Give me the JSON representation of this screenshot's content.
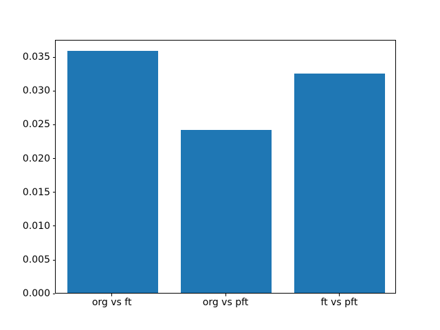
{
  "chart_data": {
    "type": "bar",
    "title": "",
    "xlabel": "",
    "ylabel": "",
    "categories": [
      "org vs ft",
      "org vs pft",
      "ft vs pft"
    ],
    "values": [
      0.0358,
      0.0241,
      0.0325
    ],
    "ylim": [
      0,
      0.0376
    ],
    "yticks": [
      0.0,
      0.005,
      0.01,
      0.015,
      0.02,
      0.025,
      0.03,
      0.035
    ],
    "ytick_labels": [
      "0.000",
      "0.005",
      "0.010",
      "0.015",
      "0.020",
      "0.025",
      "0.030",
      "0.035"
    ],
    "bar_color": "#1f77b4",
    "frame_color": "#000000",
    "background_color": "#ffffff",
    "grid": false,
    "legend": null
  }
}
